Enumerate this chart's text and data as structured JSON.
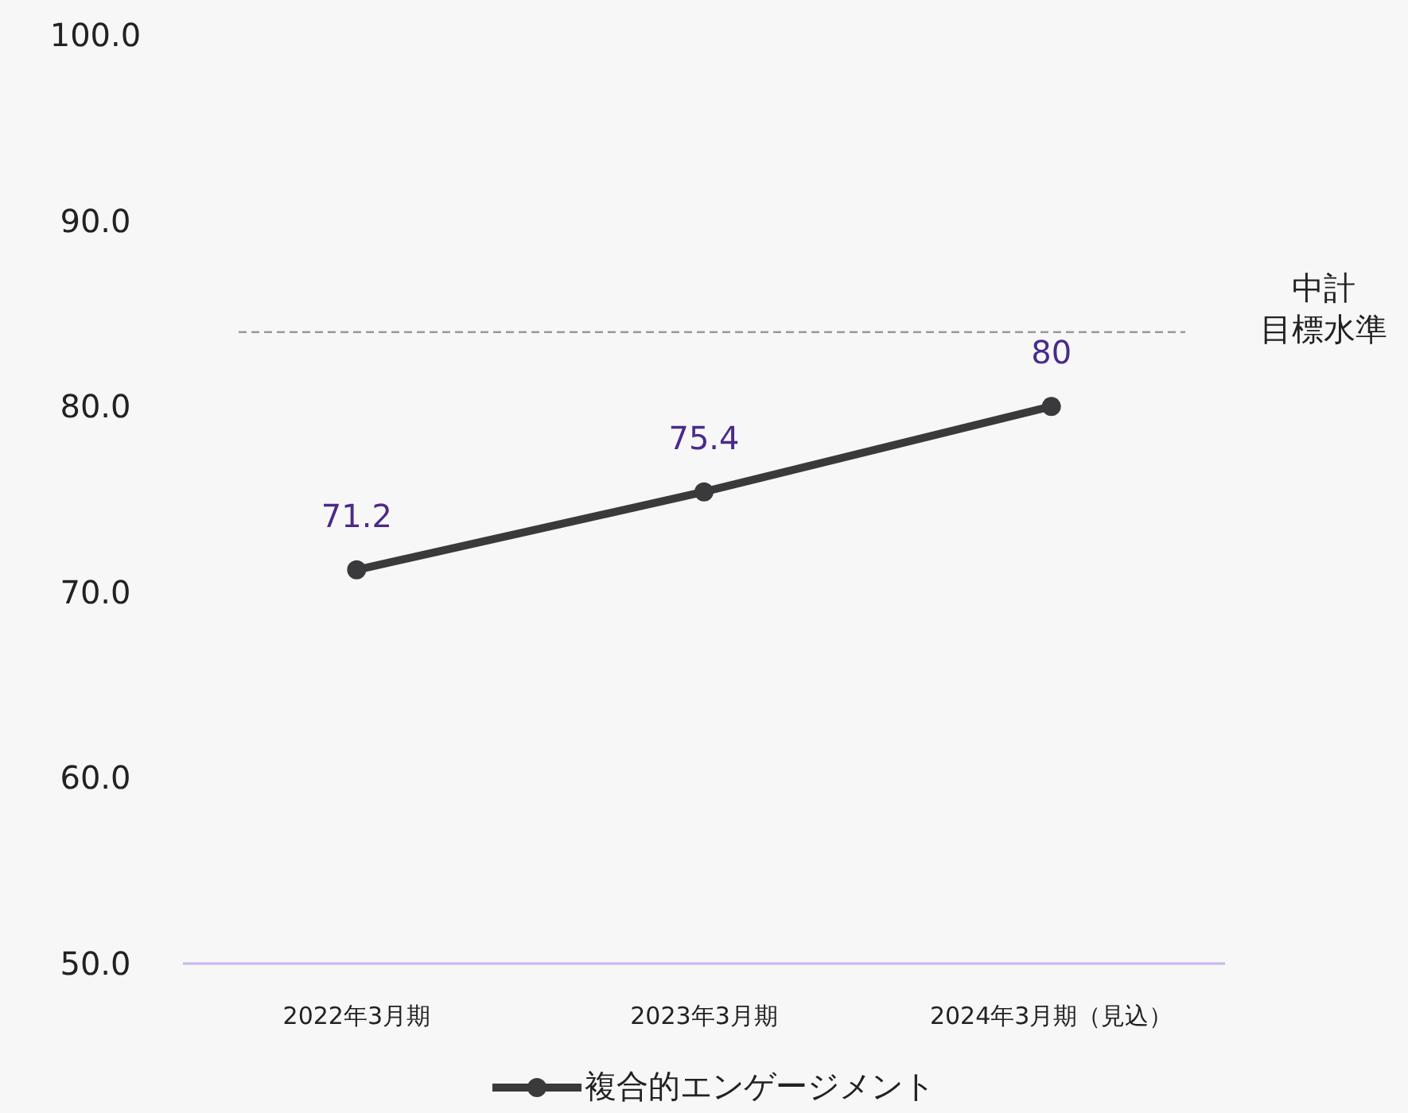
{
  "chart_data": {
    "type": "line",
    "categories": [
      "2022年3月期",
      "2023年3月期",
      "2024年3月期（見込）"
    ],
    "series": [
      {
        "name": "複合的エンゲージメント",
        "color": "#3a3a3c",
        "values": [
          71.2,
          75.4,
          80
        ]
      }
    ],
    "ylim": [
      50,
      100
    ],
    "yticks": [
      {
        "value": 50,
        "label": "50.0"
      },
      {
        "value": 60,
        "label": "60.0"
      },
      {
        "value": 70,
        "label": "70.0"
      },
      {
        "value": 80,
        "label": "80.0"
      },
      {
        "value": 90,
        "label": "90.0"
      },
      {
        "value": 100,
        "label": "100.0"
      }
    ],
    "ref_lines": [
      {
        "axis": "y",
        "value": 84,
        "label": "中計目標水準",
        "color": "#999999",
        "line_style": "dashed"
      }
    ],
    "data_labels": true,
    "marker": "circle",
    "legend": "bottom",
    "grid": false
  }
}
